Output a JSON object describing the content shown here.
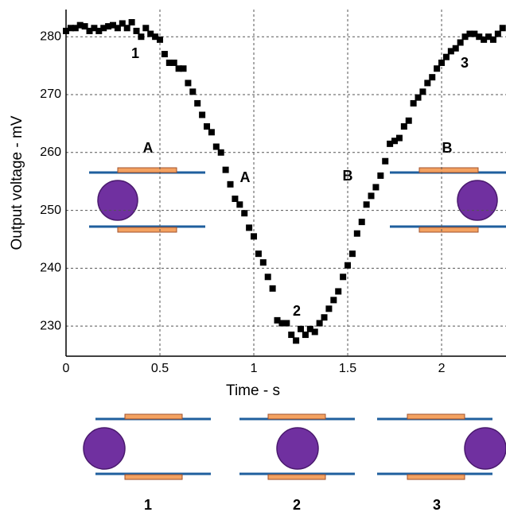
{
  "chart_data": {
    "type": "scatter",
    "x_label": "Time - s",
    "y_label": "Output voltage - mV",
    "xlim": [
      0,
      2.343
    ],
    "ylim": [
      224.8,
      284.7
    ],
    "xticks": [
      0,
      0.5,
      1,
      1.5,
      2
    ],
    "yticks": [
      230,
      240,
      250,
      260,
      270,
      280
    ],
    "grid": true,
    "color": "#000000",
    "x": [
      0,
      0.025,
      0.05,
      0.075,
      0.1,
      0.125,
      0.15,
      0.175,
      0.2,
      0.225,
      0.25,
      0.275,
      0.3,
      0.325,
      0.35,
      0.375,
      0.4,
      0.425,
      0.45,
      0.475,
      0.5,
      0.525,
      0.55,
      0.575,
      0.6,
      0.625,
      0.65,
      0.675,
      0.7,
      0.725,
      0.75,
      0.775,
      0.8,
      0.825,
      0.85,
      0.875,
      0.9,
      0.925,
      0.95,
      0.975,
      1,
      1.025,
      1.05,
      1.075,
      1.1,
      1.125,
      1.15,
      1.175,
      1.2,
      1.225,
      1.25,
      1.275,
      1.3,
      1.325,
      1.35,
      1.375,
      1.4,
      1.425,
      1.45,
      1.475,
      1.5,
      1.525,
      1.55,
      1.575,
      1.6,
      1.625,
      1.65,
      1.675,
      1.7,
      1.725,
      1.75,
      1.775,
      1.8,
      1.825,
      1.85,
      1.875,
      1.9,
      1.925,
      1.95,
      1.975,
      2,
      2.025,
      2.05,
      2.075,
      2.1,
      2.125,
      2.15,
      2.175,
      2.2,
      2.225,
      2.25,
      2.275,
      2.3,
      2.325
    ],
    "values": [
      281,
      281.5,
      281.5,
      282,
      281.8,
      281,
      281.5,
      281,
      281.5,
      281.8,
      282,
      281.5,
      282.3,
      281.5,
      282.5,
      281,
      280,
      281.5,
      280.5,
      280,
      279.5,
      277,
      275.5,
      275.5,
      274.5,
      274.5,
      272,
      270.5,
      268.5,
      266.5,
      264.5,
      263.5,
      261,
      260,
      257,
      254.5,
      252,
      251,
      249.5,
      247,
      245.5,
      242.5,
      241,
      238.5,
      236.5,
      231,
      230.5,
      230.5,
      228.5,
      227.5,
      229.5,
      228.5,
      229.5,
      229,
      230.5,
      231.5,
      233,
      234.5,
      236,
      238.5,
      240.5,
      242.5,
      246,
      248,
      251,
      252.5,
      254,
      256,
      258.5,
      261.5,
      262,
      262.5,
      264.5,
      265.5,
      268.5,
      269.5,
      270.5,
      272,
      273,
      274.5,
      275.5,
      276.5,
      277.5,
      278,
      279,
      280,
      280.5,
      280.5,
      280,
      279.5,
      280,
      279.5,
      280.5,
      281.5
    ],
    "annotations": [
      "1",
      "A",
      "2",
      "B",
      "3"
    ],
    "inset_labels": [
      "A",
      "B"
    ],
    "panel_labels": [
      "1",
      "2",
      "3"
    ]
  }
}
